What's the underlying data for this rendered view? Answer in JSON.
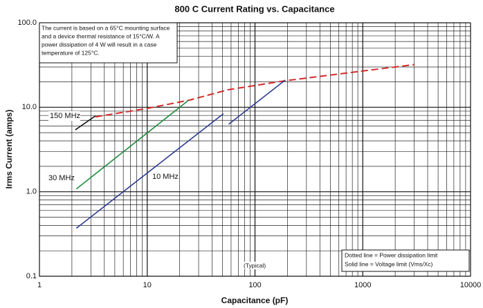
{
  "chart_data": {
    "type": "line",
    "title": "800 C Current Rating vs. Capacitance",
    "xlabel": "Capacitance (pF)",
    "ylabel": "Irms Current (amps)",
    "xscale": "log",
    "yscale": "log",
    "grid": true,
    "xlim": [
      1,
      10000
    ],
    "xticks": [
      1,
      10,
      100,
      1000,
      10000
    ],
    "ylim": [
      0.1,
      100
    ],
    "yticks": [
      0.1,
      {
        "value": 1,
        "label": "1.0"
      },
      {
        "value": 10,
        "label": "10.0"
      },
      {
        "value": 100,
        "label": "100.0"
      }
    ],
    "series": [
      {
        "name": "150 MHz",
        "color": "#111111",
        "x": [
          2.15,
          3.3
        ],
        "values": [
          5.4,
          7.9
        ]
      },
      {
        "color": "#d42a2a",
        "dashed": true,
        "x": [
          3.3,
          10,
          25,
          56,
          190,
          3000
        ],
        "values": [
          7.7,
          9.7,
          12.2,
          16.1,
          20.6,
          32
        ]
      },
      {
        "name": "30 MHz",
        "color": "#1e8a3e",
        "x": [
          2.2,
          24
        ],
        "values": [
          1.08,
          12
        ]
      },
      {
        "name": "10 MHz",
        "color": "#2b3990",
        "x": [
          2.2,
          51
        ],
        "values": [
          0.37,
          8.4
        ]
      },
      {
        "color": "#2b3990",
        "x": [
          57,
          191
        ],
        "values": [
          6.3,
          21
        ]
      }
    ],
    "note": [
      "The current is based on a 65°C mounting surface",
      "and a device thermal resistance of 15°C/W. A",
      "power dissipation of 4 W will result in a case",
      "temperature of 125°C."
    ],
    "legend_note": [
      "Dotted line = Power dissipation limit",
      "Solid line = Voltage limit (Vms/Xc)"
    ],
    "annotation": "(Typical)"
  }
}
